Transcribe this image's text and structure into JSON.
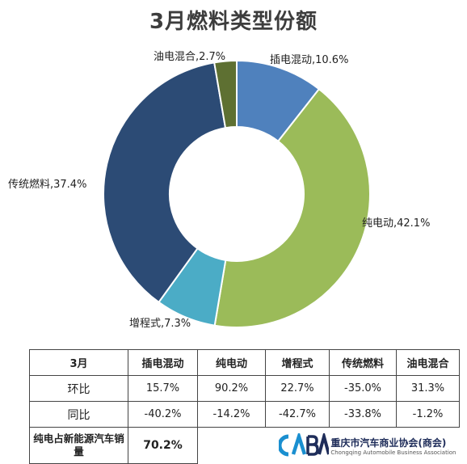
{
  "title": "3月燃料类型份额",
  "chart_data": {
    "type": "pie",
    "title": "3月燃料类型份额",
    "slices": [
      {
        "name": "插电混动",
        "value": 10.6,
        "color": "#4f81bd",
        "label": "插电混动,10.6%"
      },
      {
        "name": "纯电动",
        "value": 42.1,
        "color": "#9bbb59",
        "label": "纯电动,42.1%"
      },
      {
        "name": "增程式",
        "value": 7.3,
        "color": "#4bacc6",
        "label": "增程式,7.3%"
      },
      {
        "name": "传统燃料",
        "value": 37.4,
        "color": "#2c4b75",
        "label": "传统燃料,37.4%"
      },
      {
        "name": "油电混合",
        "value": 2.7,
        "color": "#5e7032",
        "label": "油电混合,2.7%"
      }
    ]
  },
  "table": {
    "corner": "3月",
    "headers": [
      "插电混动",
      "纯电动",
      "增程式",
      "传统燃料",
      "油电混合"
    ],
    "rows": [
      {
        "label": "环比",
        "values": [
          "15.7%",
          "90.2%",
          "22.7%",
          "-35.0%",
          "31.3%"
        ]
      },
      {
        "label": "同比",
        "values": [
          "-40.2%",
          "-14.2%",
          "-42.7%",
          "-33.8%",
          "-1.2%"
        ]
      }
    ],
    "npe_label": "纯电占新能源汽车销量",
    "npe_value": "70.2%"
  },
  "logo": {
    "mark": "CABA",
    "name_cn": "重庆市汽车商业协会(商会)",
    "name_en": "Chongqing Automobile Business Association"
  }
}
